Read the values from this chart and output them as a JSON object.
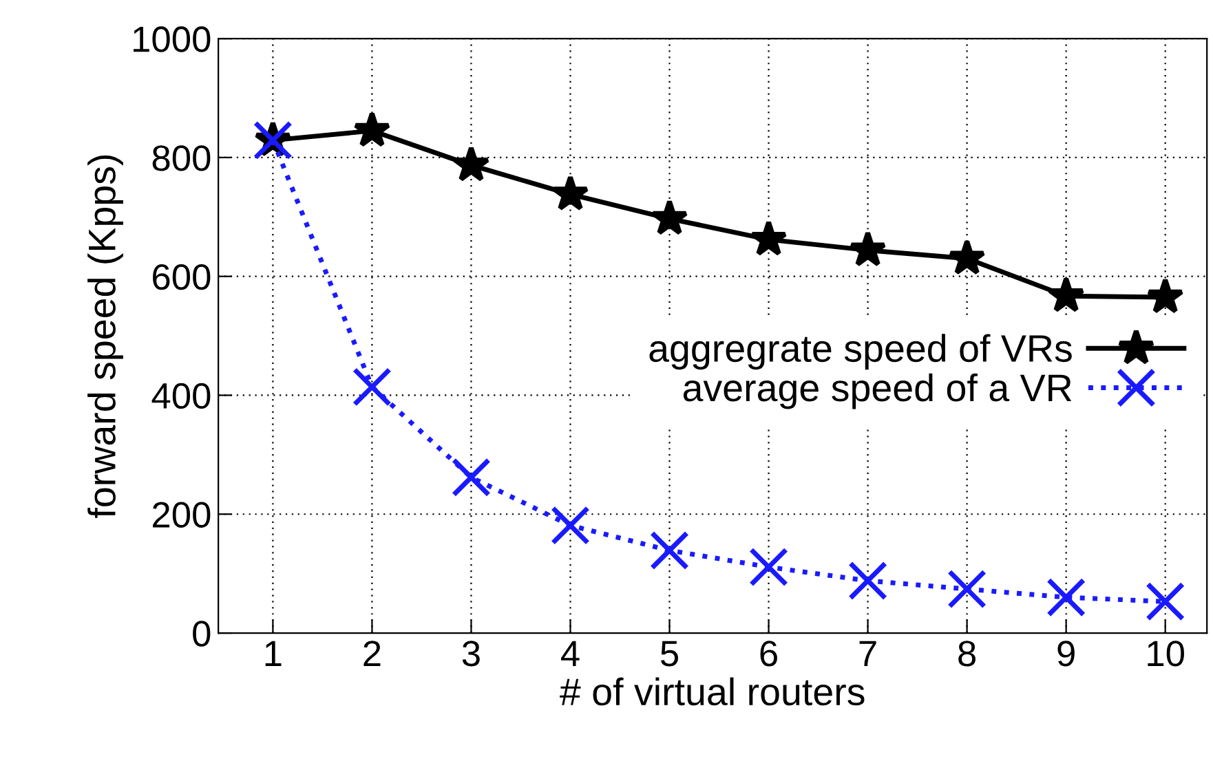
{
  "chart_data": {
    "type": "line",
    "xlabel": "# of virtual routers",
    "ylabel": "forward speed (Kpps)",
    "x": [
      1,
      2,
      3,
      4,
      5,
      6,
      7,
      8,
      9,
      10
    ],
    "series": [
      {
        "name": "aggregrate speed of VRs",
        "color": "#000000",
        "marker": "star",
        "line_style": "solid",
        "values": [
          829,
          845,
          787,
          738,
          697,
          662,
          644,
          630,
          567,
          565
        ]
      },
      {
        "name": "average speed of a VR",
        "color": "#1a1aff",
        "marker": "cross",
        "line_style": "dotted",
        "values": [
          829,
          414,
          262,
          181,
          139,
          111,
          88,
          74,
          60,
          53
        ]
      }
    ],
    "xlim": [
      0.45,
      10.42
    ],
    "xticks": [
      1,
      2,
      3,
      4,
      5,
      6,
      7,
      8,
      9,
      10
    ],
    "ylim": [
      0,
      1000
    ],
    "yticks": [
      0,
      200,
      400,
      600,
      800,
      1000
    ],
    "grid": true,
    "legend": "center right"
  }
}
